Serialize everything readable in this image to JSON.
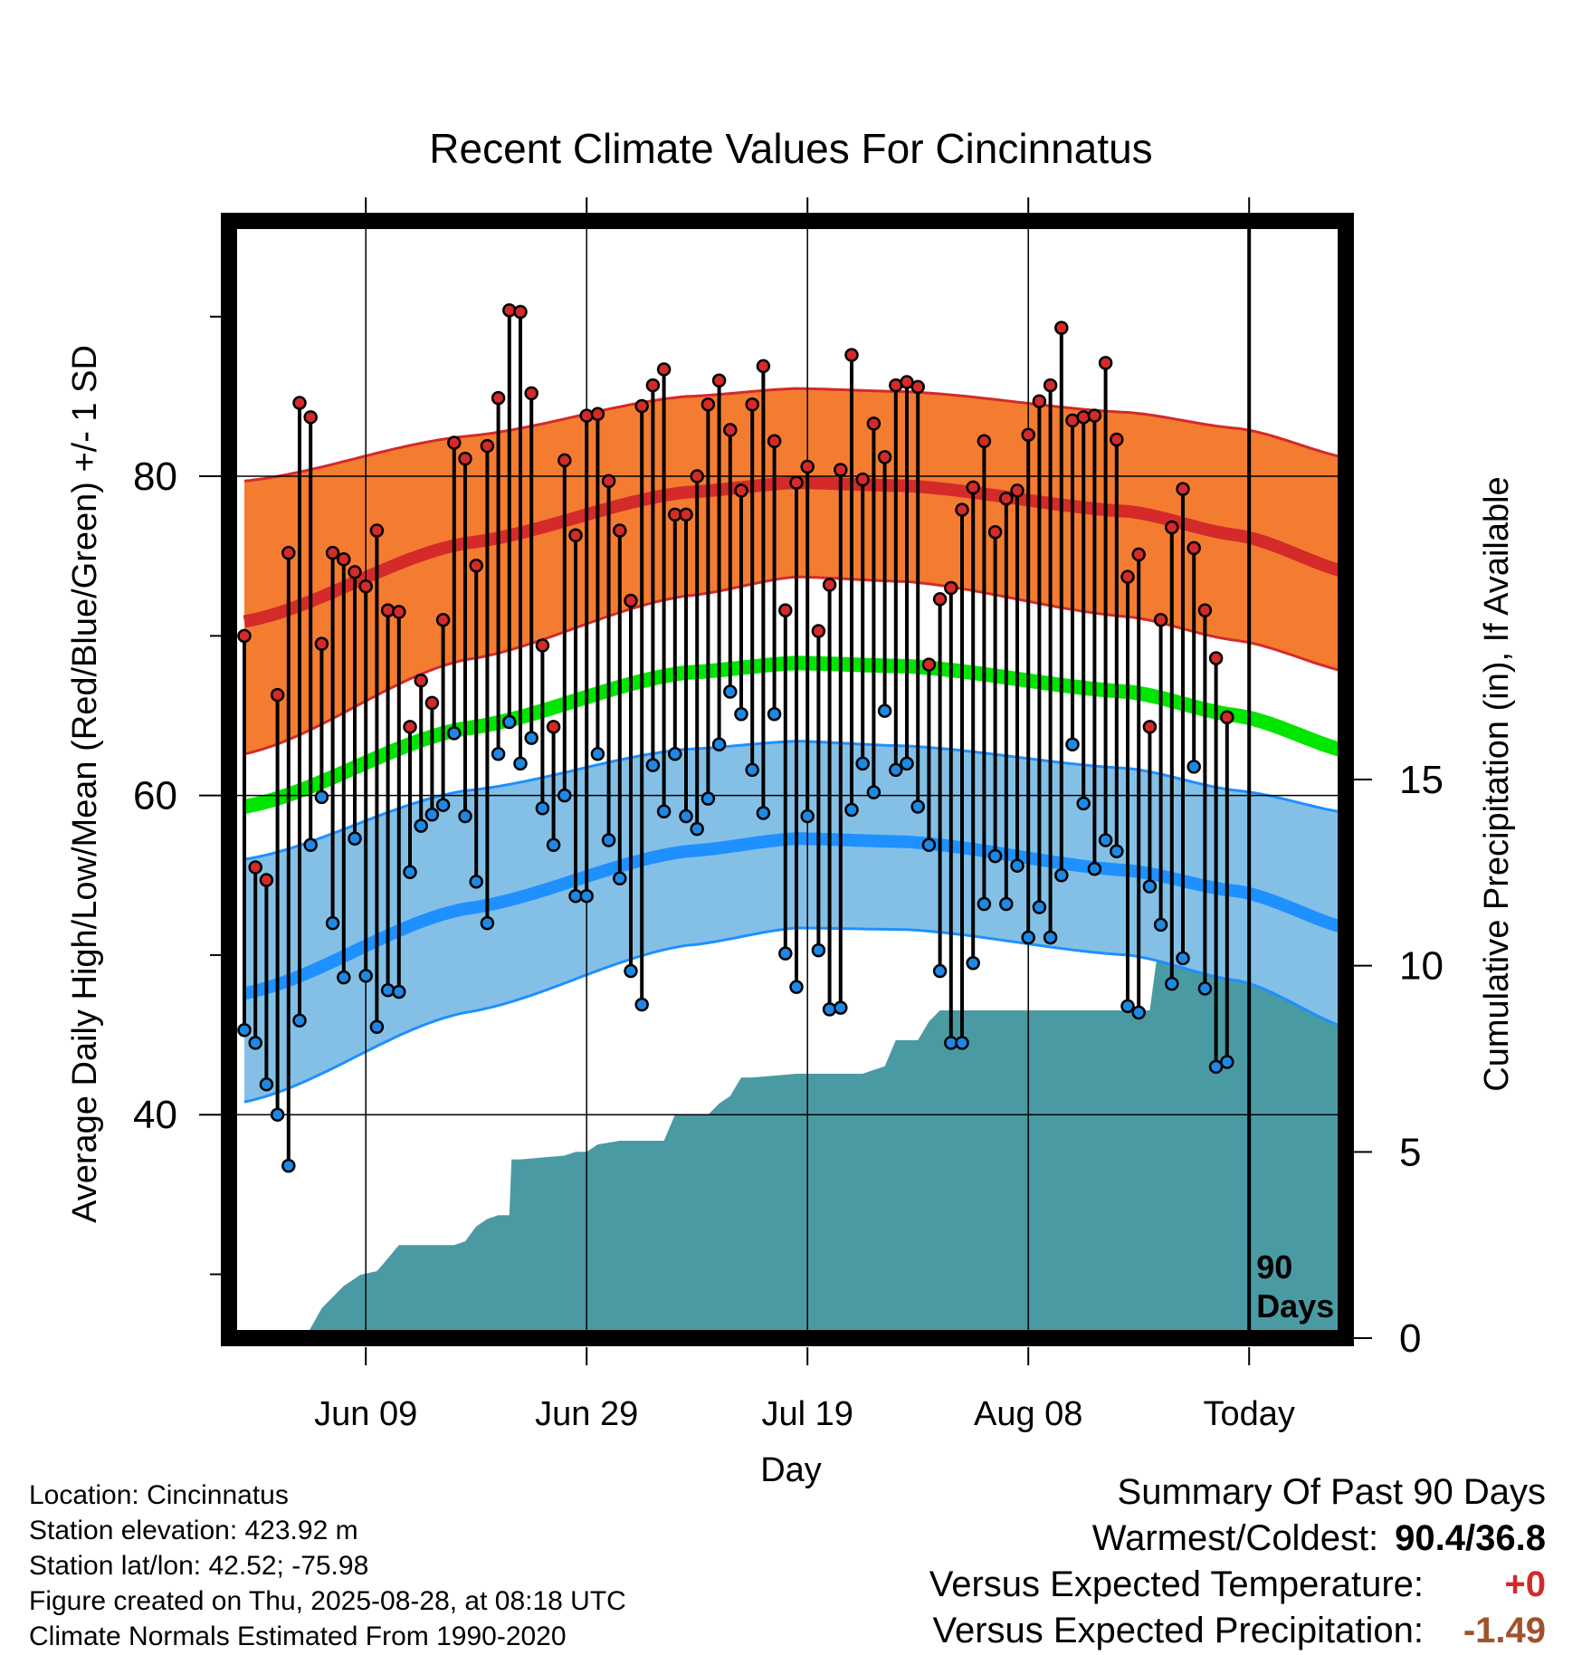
{
  "chart_data": {
    "type": "line",
    "title": "Recent Climate Values For Cincinnatus",
    "xlabel": "Day",
    "ylabel_left": "Average Daily High/Low/Mean (Red/Blue/Green) +/- 1 SD",
    "ylabel_right": "Cumulative Precipitation (in), If Available",
    "x_tick_labels": [
      "Jun 09",
      "Jun 29",
      "Jul 19",
      "Aug 08",
      "Today"
    ],
    "x_tick_days": [
      11,
      31,
      51,
      71,
      91
    ],
    "x_range_days": [
      0,
      101
    ],
    "ylim_left": [
      26,
      96
    ],
    "y_ticks_left": [
      40,
      60,
      80
    ],
    "y_minor_ticks_left": [
      30,
      50,
      70,
      90
    ],
    "ylim_right": [
      0,
      30
    ],
    "y_ticks_right": [
      0,
      5,
      10,
      15
    ],
    "grid": true,
    "today_marker_label": [
      "90",
      "Days"
    ],
    "colors": {
      "high_band": "#f47c30",
      "high_band_edge": "#d42a2a",
      "normal_high": "#d42a2a",
      "normal_mean": "#00e600",
      "low_band": "#84c0e6",
      "low_band_edge": "#1e90ff",
      "normal_low": "#1e90ff",
      "precip": "#4a9aa4",
      "high_point": "#d42a2a",
      "low_point": "#1e88e5"
    },
    "normals": {
      "day": [
        0,
        20,
        40,
        50,
        60,
        80,
        90,
        101
      ],
      "high_upper": [
        79.7,
        82.5,
        85.0,
        85.5,
        85.3,
        84.0,
        83.0,
        81.0
      ],
      "high_mean": [
        70.9,
        75.8,
        79.0,
        79.6,
        79.4,
        77.8,
        76.3,
        73.8
      ],
      "high_lower": [
        62.6,
        68.5,
        72.5,
        73.7,
        73.4,
        71.2,
        69.7,
        67.6
      ],
      "mean": [
        59.3,
        64.2,
        67.7,
        68.3,
        68.1,
        66.5,
        65.0,
        62.6
      ],
      "low_upper": [
        56.0,
        60.3,
        62.9,
        63.4,
        63.1,
        61.7,
        60.3,
        58.8
      ],
      "low_mean": [
        47.6,
        52.9,
        56.5,
        57.3,
        57.1,
        55.3,
        54.0,
        51.5
      ],
      "low_lower": [
        40.8,
        46.4,
        50.6,
        51.7,
        51.6,
        50.0,
        48.4,
        45.2
      ]
    },
    "series": [
      {
        "name": "High",
        "values": [
          70,
          55.5,
          54.7,
          66.3,
          75.2,
          84.6,
          83.7,
          69.5,
          75.2,
          74.8,
          74.0,
          73.1,
          76.6,
          71.6,
          71.5,
          64.3,
          67.2,
          65.8,
          71.0,
          82.1,
          81.1,
          74.4,
          81.9,
          84.9,
          90.4,
          90.3,
          85.2,
          69.4,
          64.3,
          81.0,
          76.3,
          83.8,
          83.9,
          79.7,
          76.6,
          72.2,
          84.4,
          85.7,
          86.7,
          77.6,
          77.6,
          80.0,
          84.5,
          86.0,
          82.9,
          79.1,
          84.5,
          86.9,
          82.2,
          71.6,
          79.6,
          80.6,
          70.3,
          73.2,
          80.4,
          87.6,
          79.8,
          83.3,
          81.2,
          85.7,
          85.9,
          85.6,
          68.2,
          72.3,
          73.0,
          77.9,
          79.3,
          82.2,
          76.5,
          78.6,
          79.1,
          82.6,
          84.7,
          85.7,
          89.3,
          83.5,
          83.7,
          83.8,
          87.1,
          82.3,
          73.7,
          75.1,
          64.3,
          71.0,
          76.8,
          79.2,
          75.5,
          71.6,
          68.6,
          64.9
        ],
        "color": "#d42a2a"
      },
      {
        "name": "Low",
        "values": [
          45.3,
          44.5,
          41.9,
          40.0,
          36.8,
          45.9,
          56.9,
          59.9,
          52.0,
          48.6,
          57.3,
          48.7,
          45.5,
          47.8,
          47.7,
          55.2,
          58.1,
          58.8,
          59.4,
          63.9,
          58.7,
          54.6,
          52.0,
          62.6,
          64.6,
          62.0,
          63.6,
          59.2,
          56.9,
          60.0,
          53.7,
          53.7,
          62.6,
          57.2,
          54.8,
          49.0,
          46.9,
          61.9,
          59.0,
          62.6,
          58.7,
          57.9,
          59.8,
          63.2,
          66.5,
          65.1,
          61.6,
          58.9,
          65.1,
          50.1,
          48.0,
          58.7,
          50.3,
          46.6,
          46.7,
          59.1,
          62.0,
          60.2,
          65.3,
          61.6,
          62.0,
          59.3,
          56.9,
          49.0,
          44.5,
          44.5,
          49.5,
          53.2,
          56.2,
          53.2,
          55.6,
          51.1,
          53.0,
          51.1,
          55.0,
          63.2,
          59.5,
          55.4,
          57.2,
          56.5,
          46.8,
          46.4,
          54.3,
          51.9,
          48.2,
          49.8,
          61.8,
          47.9,
          43.0,
          43.3
        ],
        "color": "#1e88e5"
      },
      {
        "name": "Cumulative Precipitation",
        "day": [
          0,
          5.5,
          7,
          9,
          10.5,
          12,
          12.6,
          14,
          18,
          19,
          20,
          21,
          22,
          23,
          24,
          24.2,
          25,
          29,
          30,
          31,
          32,
          34,
          35,
          36,
          37,
          38,
          39,
          40,
          42,
          43,
          44,
          45,
          46,
          50,
          56,
          57,
          58,
          59,
          60,
          61,
          62,
          63,
          64,
          65,
          66,
          76,
          77,
          78,
          79,
          80,
          81,
          82,
          83,
          84,
          85,
          86,
          88,
          90,
          91,
          101
        ],
        "values": [
          0,
          0,
          0.8,
          1.4,
          1.7,
          1.8,
          2.0,
          2.5,
          2.5,
          2.5,
          2.6,
          3.0,
          3.2,
          3.3,
          3.3,
          4.8,
          4.8,
          4.9,
          5.0,
          5.0,
          5.2,
          5.3,
          5.3,
          5.3,
          5.3,
          5.3,
          6.0,
          6.0,
          6.0,
          6.3,
          6.5,
          7.0,
          7.0,
          7.1,
          7.1,
          7.2,
          7.3,
          8.0,
          8.0,
          8.0,
          8.5,
          8.8,
          8.8,
          8.8,
          8.8,
          8.8,
          8.8,
          8.8,
          8.8,
          8.8,
          8.8,
          8.8,
          11.0,
          11.0,
          11.0,
          11.0,
          11.3,
          11.4,
          11.5,
          11.5
        ],
        "color": "#4a9aa4"
      }
    ]
  },
  "info": {
    "location": "Location: Cincinnatus",
    "elevation": "Station elevation: 423.92 m",
    "latlon": "Station lat/lon: 42.52; -75.98",
    "created": "Figure created on Thu, 2025-08-28, at 08:18 UTC",
    "normals": "Climate Normals Estimated From 1990-2020"
  },
  "summary": {
    "heading": "Summary Of Past 90 Days",
    "warmest_label": "Warmest/Coldest:",
    "warmest_value": "90.4/36.8",
    "temp_label": "Versus Expected Temperature:",
    "temp_value": "+0",
    "temp_color": "#d42a2a",
    "precip_label": "Versus Expected Precipitation:",
    "precip_value": "-1.49",
    "precip_color": "#a0522d"
  }
}
